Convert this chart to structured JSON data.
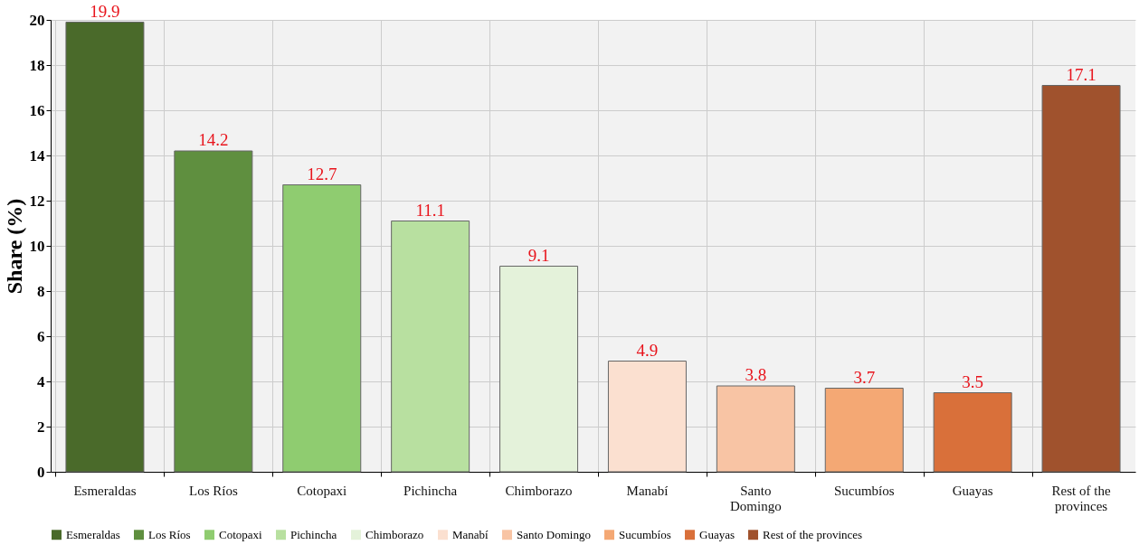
{
  "chart_data": {
    "type": "bar",
    "ylabel": "Share (%)",
    "categories": [
      "Esmeraldas",
      "Los Ríos",
      "Cotopaxi",
      "Pichincha",
      "Chimborazo",
      "Manabí",
      "Santo Domingo",
      "Sucumbíos",
      "Guayas",
      "Rest of the provinces"
    ],
    "series": [
      {
        "name": "Esmeraldas",
        "color": "#4a6a2a",
        "values": [
          19.9,
          null,
          null,
          null,
          null,
          null,
          null,
          null,
          null,
          null
        ]
      },
      {
        "name": "Los Ríos",
        "color": "#5f8f3f",
        "values": [
          null,
          14.2,
          null,
          null,
          null,
          null,
          null,
          null,
          null,
          null
        ]
      },
      {
        "name": "Cotopaxi",
        "color": "#8fcc70",
        "values": [
          null,
          null,
          12.7,
          null,
          null,
          null,
          null,
          null,
          null,
          null
        ]
      },
      {
        "name": "Pichincha",
        "color": "#b8e0a0",
        "values": [
          null,
          null,
          null,
          11.1,
          null,
          null,
          null,
          null,
          null,
          null
        ]
      },
      {
        "name": "Chimborazo",
        "color": "#e4f2da",
        "values": [
          null,
          null,
          null,
          null,
          9.1,
          null,
          null,
          null,
          null,
          null
        ]
      },
      {
        "name": "Manabí",
        "color": "#fbe0d0",
        "values": [
          null,
          null,
          null,
          null,
          null,
          4.9,
          null,
          null,
          null,
          null
        ]
      },
      {
        "name": "Santo Domingo",
        "color": "#f8c4a4",
        "values": [
          null,
          null,
          null,
          null,
          null,
          null,
          3.8,
          null,
          null,
          null
        ]
      },
      {
        "name": "Sucumbíos",
        "color": "#f4a874",
        "values": [
          null,
          null,
          null,
          null,
          null,
          null,
          null,
          3.7,
          null,
          null
        ]
      },
      {
        "name": "Guayas",
        "color": "#d9703a",
        "values": [
          null,
          null,
          null,
          null,
          null,
          null,
          null,
          null,
          3.5,
          null
        ]
      },
      {
        "name": "Rest of the provinces",
        "color": "#a0522d",
        "values": [
          null,
          null,
          null,
          null,
          null,
          null,
          null,
          null,
          null,
          17.1
        ]
      }
    ],
    "ylim": [
      0,
      20
    ],
    "yticks": [
      0,
      2,
      4,
      6,
      8,
      10,
      12,
      14,
      16,
      18,
      20
    ],
    "data_labels": true,
    "grid": true,
    "legend": "bottom"
  }
}
